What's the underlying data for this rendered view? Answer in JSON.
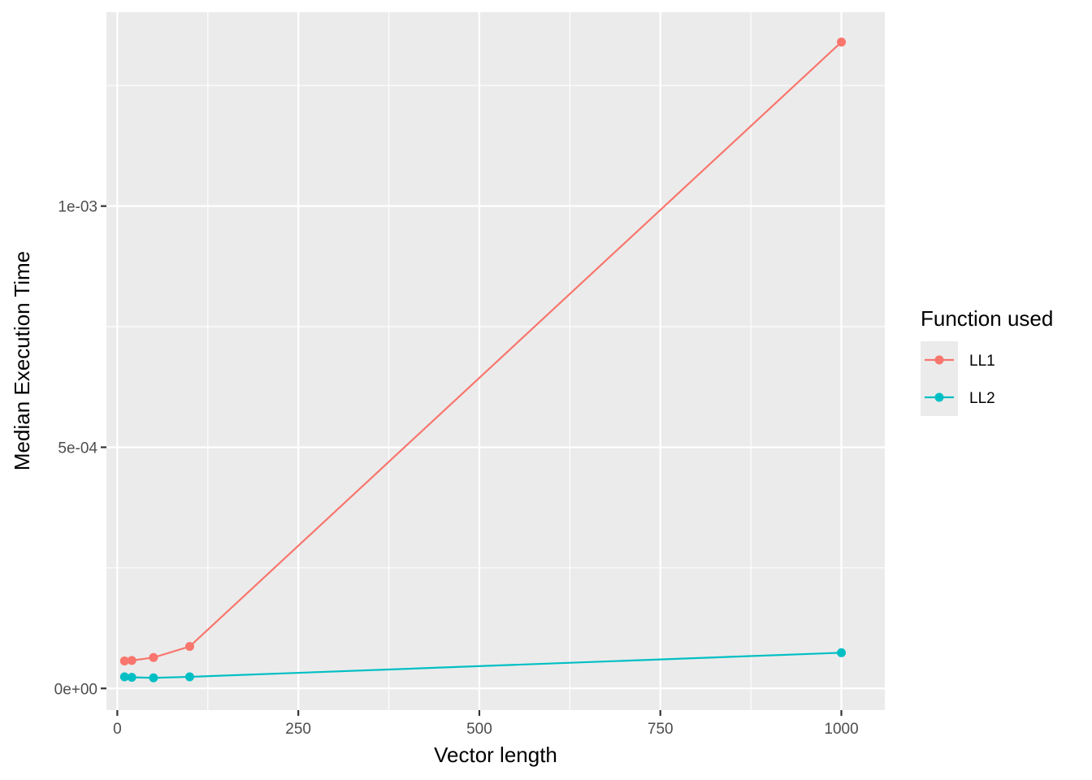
{
  "chart_data": {
    "type": "line",
    "xlabel": "Vector length",
    "ylabel": "Median Execution Time",
    "xlim": [
      -15,
      1060
    ],
    "ylim": [
      -4.5e-05,
      0.001402
    ],
    "x_ticks": [
      0,
      250,
      500,
      750,
      1000
    ],
    "x_tick_labels": [
      "0",
      "250",
      "500",
      "750",
      "1000"
    ],
    "y_ticks": [
      0,
      0.0005,
      0.001
    ],
    "y_tick_labels": [
      "0e+00",
      "5e-04",
      "1e-03"
    ],
    "grid": true,
    "legend": {
      "title": "Function used",
      "position": "right"
    },
    "series": [
      {
        "name": "LL1",
        "color": "#F8766D",
        "x": [
          10,
          20,
          50,
          100,
          1000
        ],
        "y": [
          5.7e-05,
          5.8e-05,
          6.4e-05,
          8.7e-05,
          0.00134
        ]
      },
      {
        "name": "LL2",
        "color": "#00BFC4",
        "x": [
          10,
          20,
          50,
          100,
          1000
        ],
        "y": [
          2.4e-05,
          2.3e-05,
          2.2e-05,
          2.4e-05,
          7.4e-05
        ]
      }
    ]
  }
}
